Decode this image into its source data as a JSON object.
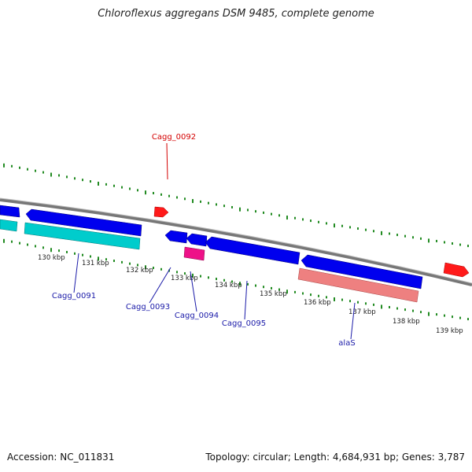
{
  "title": "Chloroflexus aggregans DSM 9485, complete genome",
  "footer": {
    "accession": "Accession: NC_011831",
    "info": "Topology: circular; Length: 4,684,931 bp; Genes: 3,787"
  },
  "ticks": [
    "130 kbp",
    "131 kbp",
    "132 kbp",
    "133 kbp",
    "134 kbp",
    "135 kbp",
    "136 kbp",
    "137 kbp",
    "138 kbp",
    "139 kbp"
  ],
  "gene_labels": [
    {
      "name": "Cagg_0092",
      "color": "#d40000"
    },
    {
      "name": "Cagg_0091",
      "color": "#1a1aa8"
    },
    {
      "name": "Cagg_0093",
      "color": "#1a1aa8"
    },
    {
      "name": "Cagg_0094",
      "color": "#1a1aa8"
    },
    {
      "name": "Cagg_0095",
      "color": "#1a1aa8"
    },
    {
      "name": "alaS",
      "color": "#1a1aa8"
    }
  ],
  "colors": {
    "cds": "#0000ee",
    "cds_other": "#ff0000",
    "rna": "#00cccc",
    "misc": "#ee1188",
    "pink": "#ee8080",
    "backbone": "#888888",
    "tick": "#228b22"
  }
}
